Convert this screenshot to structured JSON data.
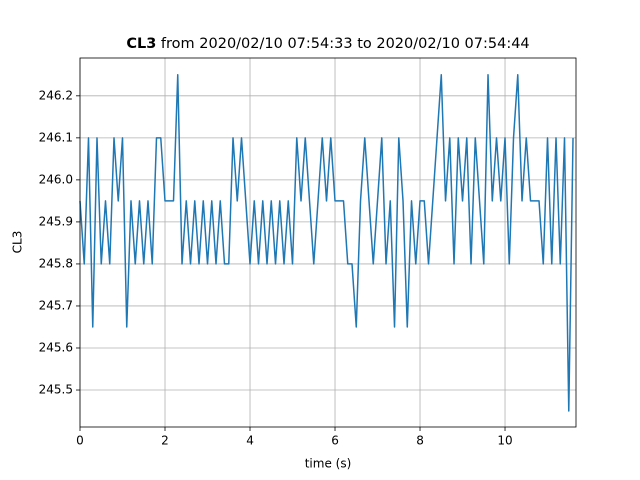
{
  "chart_data": {
    "type": "line",
    "title": {
      "bold": "CL3",
      "text": "from 2020/02/10 07:54:33 to 2020/02/10 07:54:44"
    },
    "xlabel": "time (s)",
    "ylabel": "CL3",
    "x": [
      0.0,
      0.1,
      0.2,
      0.3,
      0.4,
      0.5,
      0.6,
      0.7,
      0.8,
      0.9,
      1.0,
      1.1,
      1.2,
      1.3,
      1.4,
      1.5,
      1.6,
      1.7,
      1.8,
      1.9,
      2.0,
      2.1,
      2.2,
      2.3,
      2.4,
      2.5,
      2.6,
      2.7,
      2.8,
      2.9,
      3.0,
      3.1,
      3.2,
      3.3,
      3.4,
      3.5,
      3.6,
      3.7,
      3.8,
      3.9,
      4.0,
      4.1,
      4.2,
      4.3,
      4.4,
      4.5,
      4.6,
      4.7,
      4.8,
      4.9,
      5.0,
      5.1,
      5.2,
      5.3,
      5.4,
      5.5,
      5.6,
      5.7,
      5.8,
      5.9,
      6.0,
      6.1,
      6.2,
      6.3,
      6.4,
      6.5,
      6.6,
      6.7,
      6.8,
      6.9,
      7.0,
      7.1,
      7.2,
      7.3,
      7.4,
      7.5,
      7.6,
      7.7,
      7.8,
      7.9,
      8.0,
      8.1,
      8.2,
      8.3,
      8.4,
      8.5,
      8.6,
      8.7,
      8.8,
      8.9,
      9.0,
      9.1,
      9.2,
      9.3,
      9.4,
      9.5,
      9.6,
      9.7,
      9.8,
      9.9,
      10.0,
      10.1,
      10.2,
      10.3,
      10.4,
      10.5,
      10.6,
      10.7,
      10.8,
      10.9,
      11.0,
      11.1,
      11.2,
      11.3,
      11.4,
      11.5,
      11.6
    ],
    "series": [
      {
        "name": "CL3",
        "color": "#1f77b4",
        "values": [
          245.95,
          245.8,
          246.1,
          245.65,
          246.1,
          245.8,
          245.95,
          245.8,
          246.1,
          245.95,
          246.1,
          245.65,
          245.95,
          245.8,
          245.95,
          245.8,
          245.95,
          245.8,
          246.1,
          246.1,
          245.95,
          245.95,
          245.95,
          246.25,
          245.8,
          245.95,
          245.8,
          245.95,
          245.8,
          245.95,
          245.8,
          245.95,
          245.8,
          245.95,
          245.8,
          245.8,
          246.1,
          245.95,
          246.1,
          245.95,
          245.8,
          245.95,
          245.8,
          245.95,
          245.8,
          245.95,
          245.8,
          245.95,
          245.8,
          245.95,
          245.8,
          246.1,
          245.95,
          246.1,
          245.95,
          245.8,
          245.95,
          246.1,
          245.95,
          246.1,
          245.95,
          245.95,
          245.95,
          245.8,
          245.8,
          245.65,
          245.95,
          246.1,
          245.95,
          245.8,
          245.95,
          246.1,
          245.8,
          245.95,
          245.65,
          246.1,
          245.95,
          245.65,
          245.95,
          245.8,
          245.95,
          245.95,
          245.8,
          245.95,
          246.1,
          246.25,
          245.95,
          246.1,
          245.8,
          246.1,
          245.95,
          246.1,
          245.8,
          246.1,
          245.95,
          245.8,
          246.25,
          245.95,
          246.1,
          245.95,
          246.1,
          245.8,
          246.1,
          246.25,
          245.95,
          246.1,
          245.95,
          245.95,
          245.95,
          245.8,
          246.1,
          245.8,
          246.1,
          245.8,
          246.1,
          245.45,
          246.1
        ]
      }
    ],
    "xlim": [
      0,
      11.67
    ],
    "ylim": [
      245.412,
      246.29
    ],
    "xticks": [
      0,
      2,
      4,
      6,
      8,
      10
    ],
    "yticks": [
      245.5,
      245.6,
      245.7,
      245.8,
      245.9,
      {
        "value": 246,
        "label": "246.0"
      },
      246.1,
      246.2
    ],
    "grid": true
  }
}
